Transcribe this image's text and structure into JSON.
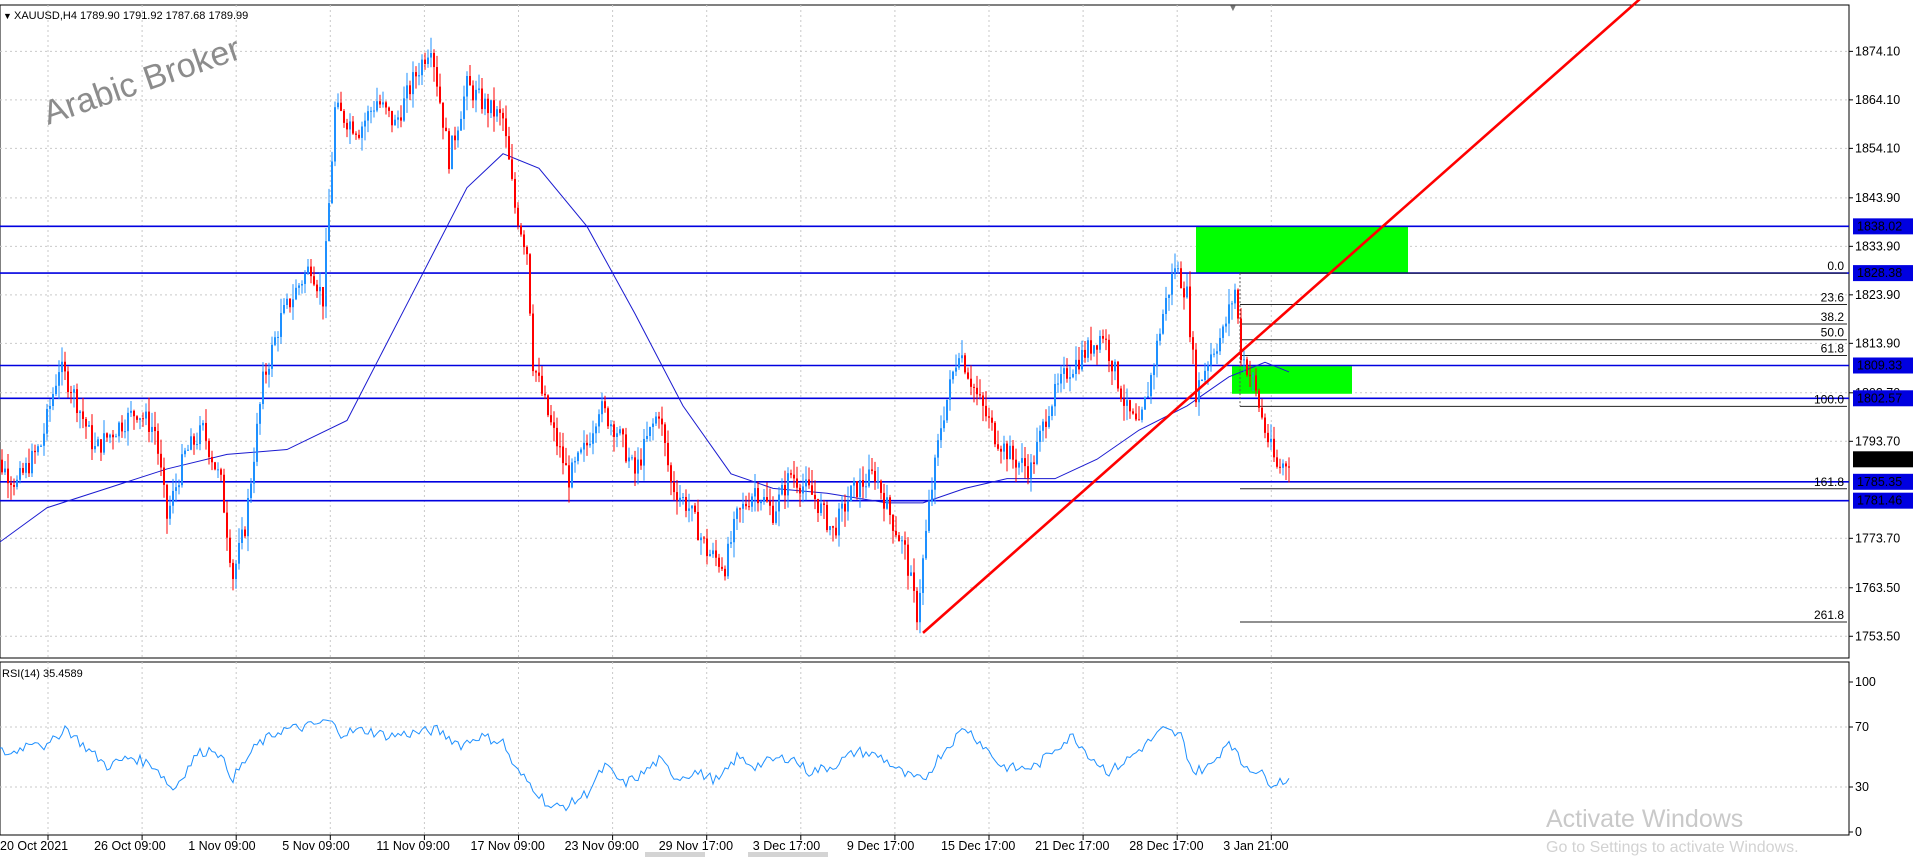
{
  "header": {
    "symbol_info": "XAUUSD,H4  1789.90 1791.92 1787.68 1789.99"
  },
  "watermark": "Arabic Broker",
  "activate_windows": {
    "title": "Activate Windows",
    "subtitle": "Go to Settings to activate Windows."
  },
  "colors": {
    "bull": "#1e90ff",
    "bear": "#ff0000",
    "ma": "#1a1ad0",
    "level_line": "#0000e0",
    "trend": "#ff0000",
    "zone": "#00ff00",
    "rsi": "#1e90ff"
  },
  "chart_data": [
    {
      "type": "candlestick",
      "symbol": "XAUUSD",
      "timeframe": "H4",
      "ohlc_current": {
        "open": 1789.9,
        "high": 1791.92,
        "low": 1787.68,
        "close": 1789.99
      },
      "ylim": [
        1750.4,
        1885.0
      ],
      "y_ticks": [
        "1874.10",
        "1864.10",
        "1854.10",
        "1843.90",
        "1833.90",
        "1823.90",
        "1813.90",
        "1803.70",
        "1793.70",
        "1773.70",
        "1763.50",
        "1753.50"
      ],
      "price_labels": [
        {
          "value": "1838.02",
          "style": "level"
        },
        {
          "value": "1828.38",
          "style": "level"
        },
        {
          "value": "1809.33",
          "style": "level"
        },
        {
          "value": "1802.57",
          "style": "level"
        },
        {
          "value": "1789.99",
          "style": "current"
        },
        {
          "value": "1785.35",
          "style": "level"
        },
        {
          "value": "1781.46",
          "style": "level"
        }
      ],
      "x_labels": [
        "20 Oct 2021",
        "26 Oct 09:00",
        "1 Nov 09:00",
        "5 Nov 09:00",
        "11 Nov 09:00",
        "17 Nov 09:00",
        "23 Nov 09:00",
        "29 Nov 17:00",
        "3 Dec 17:00",
        "9 Dec 17:00",
        "15 Dec 17:00",
        "21 Dec 17:00",
        "28 Dec 17:00",
        "3 Jan 21:00"
      ],
      "horizontal_levels": [
        1838.02,
        1828.38,
        1809.33,
        1802.57,
        1785.35,
        1781.46
      ],
      "fibonacci": {
        "price_0": 1828.38,
        "price_100": 1800.9,
        "levels": [
          {
            "label": "0.0",
            "ratio": 0.0
          },
          {
            "label": "23.6",
            "ratio": 0.236
          },
          {
            "label": "38.2",
            "ratio": 0.382
          },
          {
            "label": "50.0",
            "ratio": 0.5
          },
          {
            "label": "61.8",
            "ratio": 0.618
          },
          {
            "label": "100.0",
            "ratio": 1.0
          },
          {
            "label": "161.8",
            "ratio": 1.618
          },
          {
            "label": "261.8",
            "ratio": 2.618
          }
        ]
      },
      "zones": [
        {
          "name": "upper-supply-zone",
          "price_top": 1838.02,
          "price_bottom": 1828.38
        },
        {
          "name": "lower-zone",
          "price_top": 1809.2,
          "price_bottom": 1803.5
        }
      ],
      "close_path": [
        {
          "t": 0,
          "c": 1792
        },
        {
          "t": 10,
          "c": 1785
        },
        {
          "t": 18,
          "c": 1793
        },
        {
          "t": 24,
          "c": 1809
        },
        {
          "t": 28,
          "c": 1805
        },
        {
          "t": 36,
          "c": 1792
        },
        {
          "t": 44,
          "c": 1797
        },
        {
          "t": 50,
          "c": 1800
        },
        {
          "t": 56,
          "c": 1796
        },
        {
          "t": 60,
          "c": 1778
        },
        {
          "t": 66,
          "c": 1791
        },
        {
          "t": 72,
          "c": 1796
        },
        {
          "t": 78,
          "c": 1785
        },
        {
          "t": 82,
          "c": 1766
        },
        {
          "t": 86,
          "c": 1776
        },
        {
          "t": 92,
          "c": 1806
        },
        {
          "t": 98,
          "c": 1819
        },
        {
          "t": 104,
          "c": 1826
        },
        {
          "t": 108,
          "c": 1830
        },
        {
          "t": 112,
          "c": 1823
        },
        {
          "t": 116,
          "c": 1862
        },
        {
          "t": 124,
          "c": 1858
        },
        {
          "t": 130,
          "c": 1864
        },
        {
          "t": 136,
          "c": 1859
        },
        {
          "t": 142,
          "c": 1868
        },
        {
          "t": 148,
          "c": 1876
        },
        {
          "t": 154,
          "c": 1852
        },
        {
          "t": 160,
          "c": 1867
        },
        {
          "t": 166,
          "c": 1863
        },
        {
          "t": 172,
          "c": 1860
        },
        {
          "t": 176,
          "c": 1842
        },
        {
          "t": 180,
          "c": 1833
        },
        {
          "t": 182,
          "c": 1810
        },
        {
          "t": 188,
          "c": 1797
        },
        {
          "t": 194,
          "c": 1786
        },
        {
          "t": 200,
          "c": 1793
        },
        {
          "t": 204,
          "c": 1801
        },
        {
          "t": 210,
          "c": 1796
        },
        {
          "t": 216,
          "c": 1787
        },
        {
          "t": 220,
          "c": 1794
        },
        {
          "t": 224,
          "c": 1800
        },
        {
          "t": 228,
          "c": 1785
        },
        {
          "t": 234,
          "c": 1780
        },
        {
          "t": 240,
          "c": 1771
        },
        {
          "t": 246,
          "c": 1768
        },
        {
          "t": 250,
          "c": 1778
        },
        {
          "t": 256,
          "c": 1784
        },
        {
          "t": 262,
          "c": 1779
        },
        {
          "t": 268,
          "c": 1787
        },
        {
          "t": 276,
          "c": 1782
        },
        {
          "t": 282,
          "c": 1775
        },
        {
          "t": 288,
          "c": 1783
        },
        {
          "t": 296,
          "c": 1787
        },
        {
          "t": 302,
          "c": 1777
        },
        {
          "t": 306,
          "c": 1771
        },
        {
          "t": 310,
          "c": 1758
        },
        {
          "t": 314,
          "c": 1780
        },
        {
          "t": 318,
          "c": 1797
        },
        {
          "t": 324,
          "c": 1813
        },
        {
          "t": 330,
          "c": 1803
        },
        {
          "t": 336,
          "c": 1795
        },
        {
          "t": 342,
          "c": 1790
        },
        {
          "t": 348,
          "c": 1788
        },
        {
          "t": 354,
          "c": 1801
        },
        {
          "t": 360,
          "c": 1808
        },
        {
          "t": 366,
          "c": 1812
        },
        {
          "t": 372,
          "c": 1816
        },
        {
          "t": 376,
          "c": 1808
        },
        {
          "t": 380,
          "c": 1800
        },
        {
          "t": 384,
          "c": 1796
        },
        {
          "t": 388,
          "c": 1807
        },
        {
          "t": 392,
          "c": 1820
        },
        {
          "t": 396,
          "c": 1830
        },
        {
          "t": 400,
          "c": 1824
        },
        {
          "t": 403,
          "c": 1804
        },
        {
          "t": 408,
          "c": 1812
        },
        {
          "t": 412,
          "c": 1816
        },
        {
          "t": 416,
          "c": 1825
        },
        {
          "t": 418,
          "c": 1812
        },
        {
          "t": 422,
          "c": 1806
        },
        {
          "t": 426,
          "c": 1796
        },
        {
          "t": 430,
          "c": 1788
        },
        {
          "t": 434,
          "c": 1790
        }
      ],
      "ma_points": [
        {
          "t": 0,
          "v": 1771
        },
        {
          "t": 20,
          "v": 1780
        },
        {
          "t": 40,
          "v": 1784
        },
        {
          "t": 60,
          "v": 1788
        },
        {
          "t": 80,
          "v": 1791
        },
        {
          "t": 100,
          "v": 1792
        },
        {
          "t": 120,
          "v": 1798
        },
        {
          "t": 140,
          "v": 1822
        },
        {
          "t": 160,
          "v": 1846
        },
        {
          "t": 172,
          "v": 1853
        },
        {
          "t": 184,
          "v": 1850
        },
        {
          "t": 200,
          "v": 1838
        },
        {
          "t": 216,
          "v": 1820
        },
        {
          "t": 232,
          "v": 1801
        },
        {
          "t": 248,
          "v": 1787
        },
        {
          "t": 262,
          "v": 1784
        },
        {
          "t": 280,
          "v": 1783
        },
        {
          "t": 300,
          "v": 1781
        },
        {
          "t": 312,
          "v": 1781
        },
        {
          "t": 326,
          "v": 1784
        },
        {
          "t": 340,
          "v": 1786
        },
        {
          "t": 356,
          "v": 1786
        },
        {
          "t": 370,
          "v": 1790
        },
        {
          "t": 384,
          "v": 1796
        },
        {
          "t": 400,
          "v": 1801
        },
        {
          "t": 414,
          "v": 1807
        },
        {
          "t": 426,
          "v": 1810
        },
        {
          "t": 434,
          "v": 1808
        }
      ],
      "trendline": {
        "t1": 312,
        "p1": 1754.2,
        "t2": 553,
        "p2": 1886.0
      }
    },
    {
      "type": "line",
      "indicator": "RSI(14) 35.4589",
      "ylim": [
        0,
        100
      ],
      "y_ticks": [
        "100",
        "70",
        "30",
        "0"
      ],
      "values": [
        {
          "t": 0,
          "v": 56
        },
        {
          "t": 8,
          "v": 52
        },
        {
          "t": 16,
          "v": 62
        },
        {
          "t": 20,
          "v": 56
        },
        {
          "t": 26,
          "v": 70
        },
        {
          "t": 32,
          "v": 58
        },
        {
          "t": 40,
          "v": 44
        },
        {
          "t": 48,
          "v": 50
        },
        {
          "t": 56,
          "v": 44
        },
        {
          "t": 62,
          "v": 28
        },
        {
          "t": 70,
          "v": 52
        },
        {
          "t": 76,
          "v": 56
        },
        {
          "t": 82,
          "v": 36
        },
        {
          "t": 90,
          "v": 58
        },
        {
          "t": 98,
          "v": 68
        },
        {
          "t": 106,
          "v": 70
        },
        {
          "t": 114,
          "v": 74
        },
        {
          "t": 118,
          "v": 66
        },
        {
          "t": 126,
          "v": 68
        },
        {
          "t": 134,
          "v": 64
        },
        {
          "t": 142,
          "v": 66
        },
        {
          "t": 150,
          "v": 68
        },
        {
          "t": 158,
          "v": 58
        },
        {
          "t": 164,
          "v": 64
        },
        {
          "t": 172,
          "v": 60
        },
        {
          "t": 176,
          "v": 42
        },
        {
          "t": 182,
          "v": 30
        },
        {
          "t": 188,
          "v": 16
        },
        {
          "t": 194,
          "v": 18
        },
        {
          "t": 200,
          "v": 26
        },
        {
          "t": 206,
          "v": 44
        },
        {
          "t": 212,
          "v": 32
        },
        {
          "t": 218,
          "v": 38
        },
        {
          "t": 224,
          "v": 48
        },
        {
          "t": 230,
          "v": 36
        },
        {
          "t": 236,
          "v": 40
        },
        {
          "t": 244,
          "v": 34
        },
        {
          "t": 250,
          "v": 50
        },
        {
          "t": 256,
          "v": 44
        },
        {
          "t": 262,
          "v": 48
        },
        {
          "t": 268,
          "v": 50
        },
        {
          "t": 274,
          "v": 40
        },
        {
          "t": 282,
          "v": 44
        },
        {
          "t": 290,
          "v": 54
        },
        {
          "t": 298,
          "v": 50
        },
        {
          "t": 306,
          "v": 38
        },
        {
          "t": 312,
          "v": 34
        },
        {
          "t": 318,
          "v": 52
        },
        {
          "t": 326,
          "v": 70
        },
        {
          "t": 332,
          "v": 58
        },
        {
          "t": 338,
          "v": 44
        },
        {
          "t": 344,
          "v": 42
        },
        {
          "t": 350,
          "v": 44
        },
        {
          "t": 356,
          "v": 56
        },
        {
          "t": 362,
          "v": 64
        },
        {
          "t": 368,
          "v": 50
        },
        {
          "t": 374,
          "v": 40
        },
        {
          "t": 380,
          "v": 48
        },
        {
          "t": 386,
          "v": 58
        },
        {
          "t": 392,
          "v": 68
        },
        {
          "t": 398,
          "v": 64
        },
        {
          "t": 402,
          "v": 40
        },
        {
          "t": 408,
          "v": 44
        },
        {
          "t": 414,
          "v": 62
        },
        {
          "t": 418,
          "v": 46
        },
        {
          "t": 424,
          "v": 40
        },
        {
          "t": 428,
          "v": 33
        },
        {
          "t": 434,
          "v": 35
        }
      ]
    }
  ]
}
